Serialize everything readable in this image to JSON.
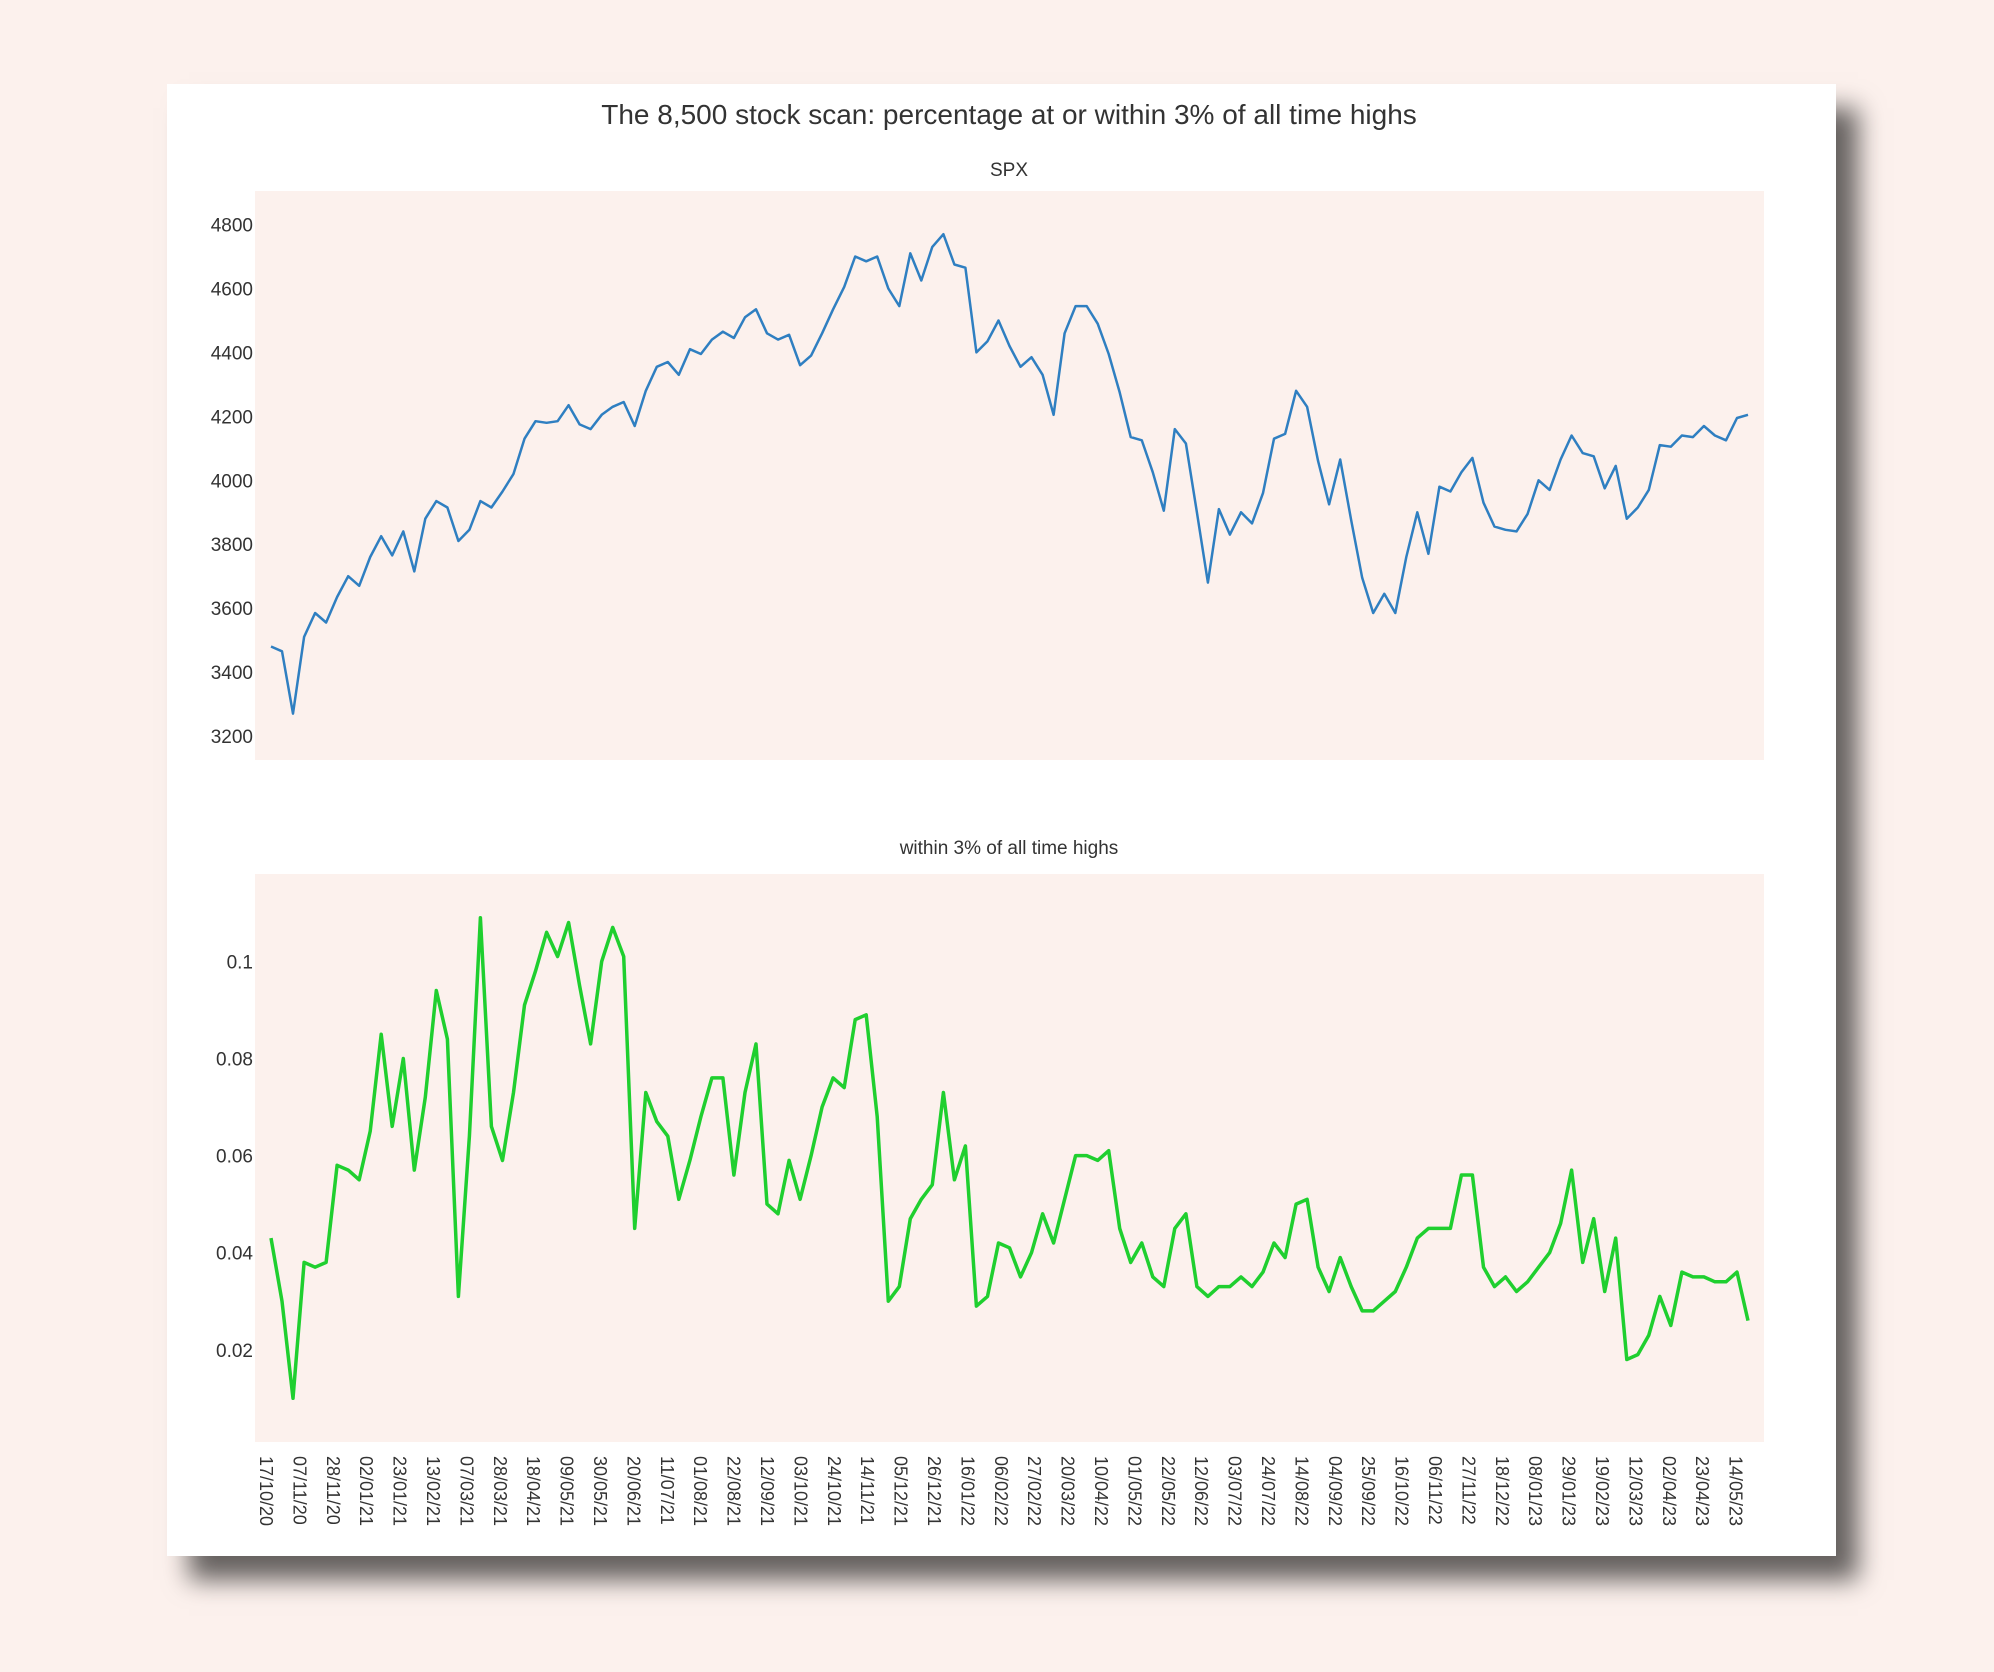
{
  "colors": {
    "page_bg": "#fcf1ed",
    "plot_bg": "#fcf1ed",
    "spx_line": "#2f7fc1",
    "ath_line": "#1fcf2f"
  },
  "chart_data": {
    "type": "line",
    "title": "The 8,500 stock scan: percentage at or within 3% of all time highs",
    "subplots": [
      {
        "subtitle": "SPX",
        "yticks": [
          3200,
          3400,
          3600,
          3800,
          4000,
          4200,
          4400,
          4600,
          4800
        ],
        "ylim": [
          3125,
          4905
        ],
        "series": [
          {
            "values": [
              3480,
              3465,
              3270,
              3510,
              3585,
              3555,
              3635,
              3700,
              3670,
              3760,
              3825,
              3765,
              3840,
              3715,
              3880,
              3935,
              3915,
              3810,
              3845,
              3935,
              3915,
              3965,
              4020,
              4130,
              4185,
              4180,
              4185,
              4235,
              4175,
              4160,
              4205,
              4230,
              4245,
              4170,
              4280,
              4355,
              4370,
              4330,
              4410,
              4395,
              4440,
              4465,
              4445,
              4510,
              4535,
              4460,
              4440,
              4455,
              4360,
              4390,
              4460,
              4535,
              4605,
              4700,
              4685,
              4700,
              4600,
              4545,
              4710,
              4625,
              4730,
              4770,
              4675,
              4665,
              4400,
              4435,
              4500,
              4420,
              4355,
              4385,
              4330,
              4205,
              4460,
              4545,
              4545,
              4490,
              4395,
              4275,
              4135,
              4125,
              4025,
              3905,
              4160,
              4115,
              3900,
              3680,
              3910,
              3830,
              3900,
              3865,
              3960,
              4130,
              4145,
              4280,
              4230,
              4060,
              3925,
              4065,
              3875,
              3695,
              3585,
              3645,
              3585,
              3760,
              3900,
              3770,
              3980,
              3965,
              4025,
              4070,
              3930,
              3855,
              3845,
              3840,
              3895,
              4000,
              3970,
              4065,
              4140,
              4085,
              4075,
              3975,
              4045,
              3880,
              3915,
              3970,
              4110,
              4105,
              4140,
              4135,
              4170,
              4140,
              4125,
              4195,
              4205
            ]
          }
        ]
      },
      {
        "subtitle": "within 3% of all time highs",
        "yticks": [
          0.02,
          0.04,
          0.06,
          0.08,
          0.1
        ],
        "ylim": [
          0.001,
          0.118
        ],
        "series": [
          {
            "values": [
              0.043,
              0.03,
              0.01,
              0.038,
              0.037,
              0.038,
              0.058,
              0.057,
              0.055,
              0.065,
              0.085,
              0.066,
              0.08,
              0.057,
              0.072,
              0.094,
              0.084,
              0.031,
              0.064,
              0.109,
              0.066,
              0.059,
              0.073,
              0.091,
              0.098,
              0.106,
              0.101,
              0.108,
              0.095,
              0.083,
              0.1,
              0.107,
              0.101,
              0.045,
              0.073,
              0.067,
              0.064,
              0.051,
              0.059,
              0.068,
              0.076,
              0.076,
              0.056,
              0.073,
              0.083,
              0.05,
              0.048,
              0.059,
              0.051,
              0.06,
              0.07,
              0.076,
              0.074,
              0.088,
              0.089,
              0.068,
              0.03,
              0.033,
              0.047,
              0.051,
              0.054,
              0.073,
              0.055,
              0.062,
              0.029,
              0.031,
              0.042,
              0.041,
              0.035,
              0.04,
              0.048,
              0.042,
              0.051,
              0.06,
              0.06,
              0.059,
              0.061,
              0.045,
              0.038,
              0.042,
              0.035,
              0.033,
              0.045,
              0.048,
              0.033,
              0.031,
              0.033,
              0.033,
              0.035,
              0.033,
              0.036,
              0.042,
              0.039,
              0.05,
              0.051,
              0.037,
              0.032,
              0.039,
              0.033,
              0.028,
              0.028,
              0.03,
              0.032,
              0.037,
              0.043,
              0.045,
              0.045,
              0.045,
              0.056,
              0.056,
              0.037,
              0.033,
              0.035,
              0.032,
              0.034,
              0.037,
              0.04,
              0.046,
              0.057,
              0.038,
              0.047,
              0.032,
              0.043,
              0.018,
              0.019,
              0.023,
              0.031,
              0.025,
              0.036,
              0.035,
              0.035,
              0.034,
              0.034,
              0.036,
              0.026
            ]
          }
        ]
      }
    ],
    "x_tick_labels": [
      "17/10/20",
      "07/11/20",
      "28/11/20",
      "02/01/21",
      "23/01/21",
      "13/02/21",
      "07/03/21",
      "28/03/21",
      "18/04/21",
      "09/05/21",
      "30/05/21",
      "20/06/21",
      "11/07/21",
      "01/08/21",
      "22/08/21",
      "12/09/21",
      "03/10/21",
      "24/10/21",
      "14/11/21",
      "05/12/21",
      "26/12/21",
      "16/01/22",
      "06/02/22",
      "27/02/22",
      "20/03/22",
      "10/04/22",
      "01/05/22",
      "22/05/22",
      "12/06/22",
      "03/07/22",
      "24/07/22",
      "14/08/22",
      "04/09/22",
      "25/09/22",
      "16/10/22",
      "06/11/22",
      "27/11/22",
      "18/12/22",
      "08/01/23",
      "29/01/23",
      "19/02/23",
      "12/03/23",
      "02/04/23",
      "23/04/23",
      "14/05/23"
    ],
    "grid": false,
    "legend": "none"
  }
}
